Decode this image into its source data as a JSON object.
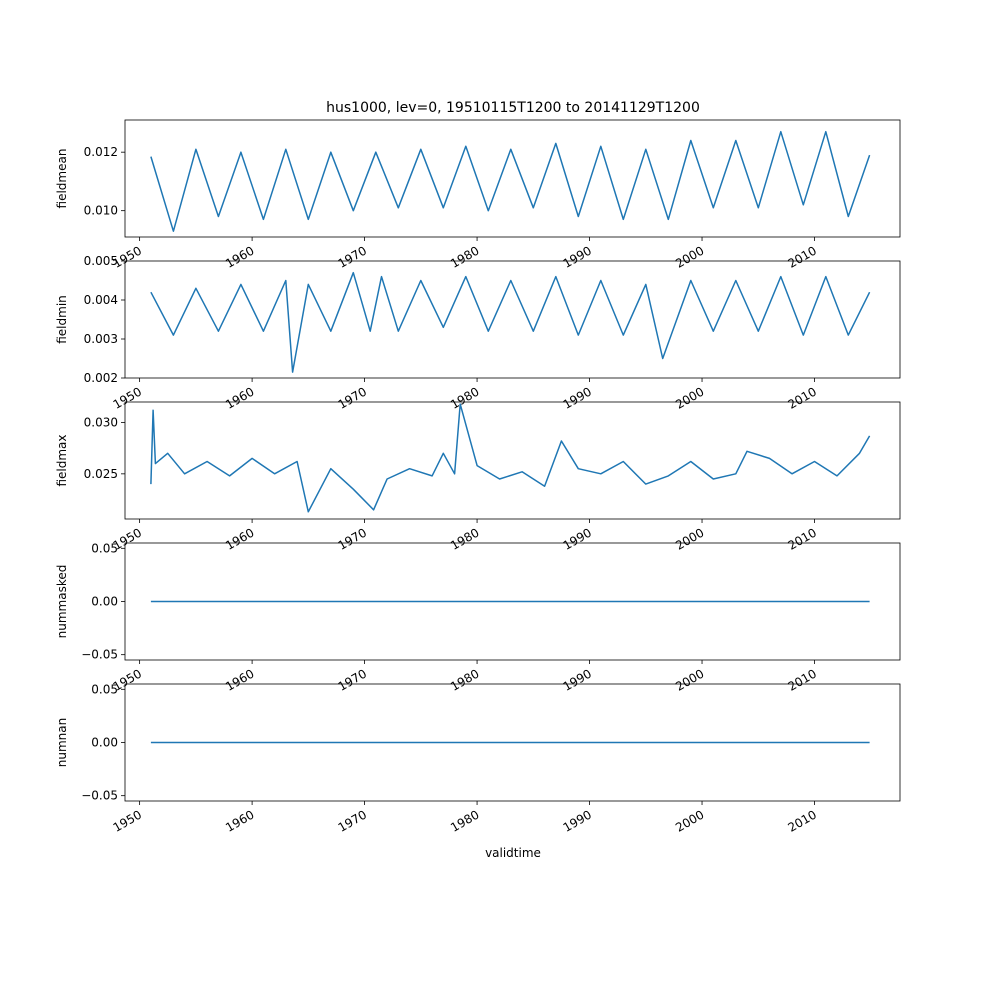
{
  "figure": {
    "title": "hus1000, lev=0, 19510115T1200 to 20141129T1200",
    "xlabel": "validtime"
  },
  "colors": {
    "series": "#1f77b4",
    "axes": "#000000",
    "background": "#ffffff"
  },
  "chart_data": [
    {
      "type": "line",
      "ylabel": "fieldmean",
      "ylim": [
        0.0091,
        0.0131
      ],
      "xlim": [
        1948.7,
        2017.6
      ],
      "yticks": [
        {
          "v": 0.01,
          "label": "0.010"
        },
        {
          "v": 0.012,
          "label": "0.012"
        }
      ],
      "xticks": [
        {
          "v": 1950,
          "label": "1950"
        },
        {
          "v": 1960,
          "label": "1960"
        },
        {
          "v": 1970,
          "label": "1970"
        },
        {
          "v": 1980,
          "label": "1980"
        },
        {
          "v": 1990,
          "label": "1990"
        },
        {
          "v": 2000,
          "label": "2000"
        },
        {
          "v": 2010,
          "label": "2010"
        }
      ],
      "x": [
        1951.0,
        1953.0,
        1955.0,
        1957.0,
        1959.0,
        1961.0,
        1963.0,
        1965.0,
        1967.0,
        1969.0,
        1971.0,
        1973.0,
        1975.0,
        1977.0,
        1979.0,
        1981.0,
        1983.0,
        1985.0,
        1987.0,
        1989.0,
        1991.0,
        1993.0,
        1995.0,
        1997.0,
        1999.0,
        2001.0,
        2003.0,
        2005.0,
        2007.0,
        2009.0,
        2011.0,
        2013.0,
        2014.9
      ],
      "y": [
        0.01185,
        0.0093,
        0.0121,
        0.0098,
        0.012,
        0.0097,
        0.0121,
        0.0097,
        0.012,
        0.01,
        0.012,
        0.0101,
        0.0121,
        0.0101,
        0.0122,
        0.01,
        0.0121,
        0.0101,
        0.0123,
        0.0098,
        0.0122,
        0.0097,
        0.0121,
        0.0097,
        0.0124,
        0.0101,
        0.0124,
        0.0101,
        0.0127,
        0.0102,
        0.0127,
        0.0098,
        0.0119
      ]
    },
    {
      "type": "line",
      "ylabel": "fieldmin",
      "ylim": [
        0.002,
        0.005
      ],
      "xlim": [
        1948.7,
        2017.6
      ],
      "yticks": [
        {
          "v": 0.002,
          "label": "0.002"
        },
        {
          "v": 0.003,
          "label": "0.003"
        },
        {
          "v": 0.004,
          "label": "0.004"
        },
        {
          "v": 0.005,
          "label": "0.005"
        }
      ],
      "xticks": [
        {
          "v": 1950,
          "label": "1950"
        },
        {
          "v": 1960,
          "label": "1960"
        },
        {
          "v": 1970,
          "label": "1970"
        },
        {
          "v": 1980,
          "label": "1980"
        },
        {
          "v": 1990,
          "label": "1990"
        },
        {
          "v": 2000,
          "label": "2000"
        },
        {
          "v": 2010,
          "label": "2010"
        }
      ],
      "x": [
        1951.0,
        1953.0,
        1955.0,
        1957.0,
        1959.0,
        1961.0,
        1963.0,
        1963.6,
        1965.0,
        1967.0,
        1969.0,
        1970.5,
        1971.5,
        1973.0,
        1975.0,
        1977.0,
        1979.0,
        1981.0,
        1983.0,
        1985.0,
        1987.0,
        1989.0,
        1991.0,
        1993.0,
        1995.0,
        1996.5,
        1999.0,
        2001.0,
        2003.0,
        2005.0,
        2007.0,
        2009.0,
        2011.0,
        2013.0,
        2014.9
      ],
      "y": [
        0.0042,
        0.0031,
        0.0043,
        0.0032,
        0.0044,
        0.0032,
        0.0045,
        0.00215,
        0.0044,
        0.0032,
        0.0047,
        0.0032,
        0.0046,
        0.0032,
        0.0045,
        0.0033,
        0.0046,
        0.0032,
        0.0045,
        0.0032,
        0.0046,
        0.0031,
        0.0045,
        0.0031,
        0.0044,
        0.0025,
        0.0045,
        0.0032,
        0.0045,
        0.0032,
        0.0046,
        0.0031,
        0.0046,
        0.0031,
        0.0042
      ]
    },
    {
      "type": "line",
      "ylabel": "fieldmax",
      "ylim": [
        0.0206,
        0.032
      ],
      "xlim": [
        1948.7,
        2017.6
      ],
      "yticks": [
        {
          "v": 0.025,
          "label": "0.025"
        },
        {
          "v": 0.03,
          "label": "0.030"
        }
      ],
      "xticks": [
        {
          "v": 1950,
          "label": "1950"
        },
        {
          "v": 1960,
          "label": "1960"
        },
        {
          "v": 1970,
          "label": "1970"
        },
        {
          "v": 1980,
          "label": "1980"
        },
        {
          "v": 1990,
          "label": "1990"
        },
        {
          "v": 2000,
          "label": "2000"
        },
        {
          "v": 2010,
          "label": "2010"
        }
      ],
      "x": [
        1951.0,
        1951.2,
        1951.4,
        1952.5,
        1954.0,
        1956.0,
        1958.0,
        1960.0,
        1962.0,
        1964.0,
        1965.0,
        1967.0,
        1969.0,
        1970.8,
        1972.0,
        1974.0,
        1976.0,
        1977.0,
        1978.0,
        1978.5,
        1980.0,
        1982.0,
        1984.0,
        1986.0,
        1987.5,
        1989.0,
        1991.0,
        1993.0,
        1995.0,
        1997.0,
        1999.0,
        2001.0,
        2003.0,
        2004.0,
        2006.0,
        2008.0,
        2010.0,
        2012.0,
        2014.0,
        2014.9
      ],
      "y": [
        0.024,
        0.0312,
        0.026,
        0.027,
        0.025,
        0.0262,
        0.0248,
        0.0265,
        0.025,
        0.0262,
        0.0213,
        0.0255,
        0.0235,
        0.0215,
        0.0245,
        0.0255,
        0.0248,
        0.027,
        0.025,
        0.0318,
        0.0258,
        0.0245,
        0.0252,
        0.0238,
        0.0282,
        0.0255,
        0.025,
        0.0262,
        0.024,
        0.0248,
        0.0262,
        0.0245,
        0.025,
        0.0272,
        0.0265,
        0.025,
        0.0262,
        0.0248,
        0.027,
        0.0287
      ]
    },
    {
      "type": "line",
      "ylabel": "nummasked",
      "ylim": [
        -0.055,
        0.055
      ],
      "xlim": [
        1948.7,
        2017.6
      ],
      "yticks": [
        {
          "v": -0.05,
          "label": "−0.05"
        },
        {
          "v": 0.0,
          "label": "0.00"
        },
        {
          "v": 0.05,
          "label": "0.05"
        }
      ],
      "xticks": [
        {
          "v": 1950,
          "label": "1950"
        },
        {
          "v": 1960,
          "label": "1960"
        },
        {
          "v": 1970,
          "label": "1970"
        },
        {
          "v": 1980,
          "label": "1980"
        },
        {
          "v": 1990,
          "label": "1990"
        },
        {
          "v": 2000,
          "label": "2000"
        },
        {
          "v": 2010,
          "label": "2010"
        }
      ],
      "x": [
        1951.0,
        2014.9
      ],
      "y": [
        0.0,
        0.0
      ]
    },
    {
      "type": "line",
      "ylabel": "numnan",
      "ylim": [
        -0.055,
        0.055
      ],
      "xlim": [
        1948.7,
        2017.6
      ],
      "yticks": [
        {
          "v": -0.05,
          "label": "−0.05"
        },
        {
          "v": 0.0,
          "label": "0.00"
        },
        {
          "v": 0.05,
          "label": "0.05"
        }
      ],
      "xticks": [
        {
          "v": 1950,
          "label": "1950"
        },
        {
          "v": 1960,
          "label": "1960"
        },
        {
          "v": 1970,
          "label": "1970"
        },
        {
          "v": 1980,
          "label": "1980"
        },
        {
          "v": 1990,
          "label": "1990"
        },
        {
          "v": 2000,
          "label": "2000"
        },
        {
          "v": 2010,
          "label": "2010"
        }
      ],
      "x": [
        1951.0,
        2014.9
      ],
      "y": [
        0.0,
        0.0
      ]
    }
  ]
}
